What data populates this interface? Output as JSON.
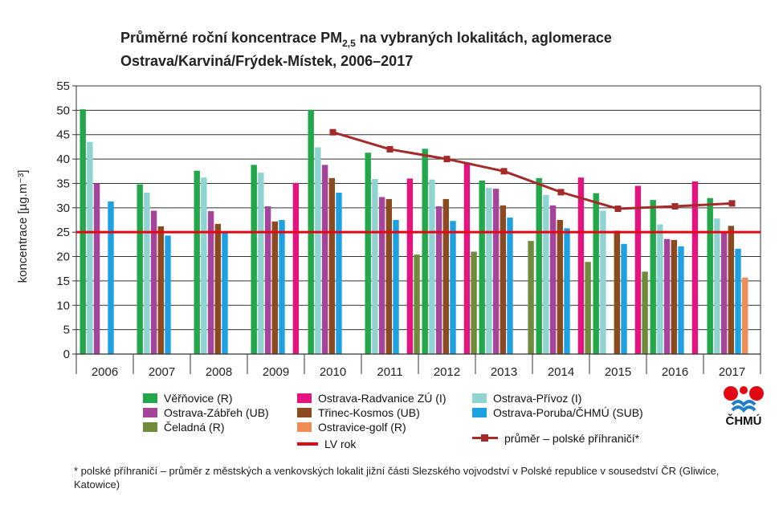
{
  "title": {
    "line1_prefix": "Průměrné roční koncentrace PM",
    "line1_sub": "2,5",
    "line1_suffix": " na vybraných lokalitách, aglomerace",
    "line2": "Ostrava/Karviná/Frýdek-Místek, 2006–2017"
  },
  "ylabel": "koncentrace [µg.m⁻³]",
  "footnote": "* polské příhraničí – průměr z městských a venkovských lokalit jižní části Slezského vojvodství v Polské republice v sousedství ČR (Gliwice, Katowice)",
  "logo": {
    "text": "ČHMÚ",
    "colors": {
      "red": "#e30613",
      "blue": "#1f7fc8"
    }
  },
  "chart_data": {
    "type": "bar",
    "categories": [
      "2006",
      "2007",
      "2008",
      "2009",
      "2010",
      "2011",
      "2012",
      "2013",
      "2014",
      "2015",
      "2016",
      "2017"
    ],
    "ylim": [
      0,
      55
    ],
    "yticks": [
      0,
      5,
      10,
      15,
      20,
      25,
      30,
      35,
      40,
      45,
      50,
      55
    ],
    "grid": true,
    "series": [
      {
        "name": "Věřňovice (R)",
        "color": "#22a84a",
        "values": [
          50.2,
          34.8,
          37.6,
          38.8,
          50.1,
          41.3,
          42.1,
          35.6,
          36.1,
          33.0,
          31.6,
          32.0
        ]
      },
      {
        "name": "Ostrava-Přívoz (I)",
        "color": "#8fd4d0",
        "values": [
          43.5,
          33.1,
          36.2,
          37.2,
          42.4,
          35.9,
          35.8,
          34.1,
          32.6,
          29.4,
          26.6,
          27.8
        ]
      },
      {
        "name": "Ostrava-Zábřeh (UB)",
        "color": "#a4449a",
        "values": [
          35.0,
          29.4,
          29.3,
          30.3,
          38.8,
          32.2,
          30.3,
          33.9,
          30.5,
          null,
          23.6,
          24.9
        ]
      },
      {
        "name": "Třinec-Kosmos (UB)",
        "color": "#8b4a1f",
        "values": [
          null,
          26.2,
          26.7,
          27.2,
          36.1,
          31.8,
          31.8,
          30.5,
          27.5,
          25.3,
          23.4,
          26.3
        ]
      },
      {
        "name": "Ostrava-Poruba/ČHMÚ (SUB)",
        "color": "#1ea1e0",
        "values": [
          31.3,
          24.3,
          25.1,
          27.5,
          33.1,
          27.5,
          27.3,
          28.0,
          25.8,
          22.6,
          22.1,
          21.6
        ]
      },
      {
        "name": "Ostravice-golf (R)",
        "color": "#f08c56",
        "values": [
          null,
          null,
          null,
          null,
          null,
          null,
          null,
          null,
          null,
          null,
          null,
          15.7
        ]
      },
      {
        "name": "Ostrava-Radvanice ZÚ (I)",
        "color": "#e3147e",
        "values": [
          null,
          null,
          null,
          35.1,
          null,
          36.0,
          39.3,
          null,
          36.2,
          34.5,
          35.4,
          null
        ]
      },
      {
        "name": "Čeladná (R)",
        "color": "#6f8c3a",
        "values": [
          null,
          null,
          null,
          null,
          null,
          20.4,
          21.0,
          23.2,
          18.9,
          16.9,
          null,
          null
        ]
      }
    ],
    "lines": [
      {
        "name": "LV rok",
        "color": "#e30613",
        "value": 25
      },
      {
        "name": "průměr – polské příhraničí*",
        "color": "#a52a2a",
        "values": [
          null,
          null,
          null,
          null,
          45.5,
          42.0,
          40.0,
          37.5,
          33.2,
          29.8,
          30.3,
          30.9
        ]
      }
    ]
  },
  "legend": [
    {
      "label": "Věřňovice (R)",
      "color": "#22a84a",
      "kind": "box"
    },
    {
      "label": "Ostrava-Radvanice ZÚ (I)",
      "color": "#e3147e",
      "kind": "box"
    },
    {
      "label": "Ostrava-Přívoz (I)",
      "color": "#8fd4d0",
      "kind": "box"
    },
    {
      "label": "Ostrava-Zábřeh (UB)",
      "color": "#a4449a",
      "kind": "box"
    },
    {
      "label": "Třinec-Kosmos (UB)",
      "color": "#8b4a1f",
      "kind": "box"
    },
    {
      "label": "Ostrava-Poruba/ČHMÚ (SUB)",
      "color": "#1ea1e0",
      "kind": "box"
    },
    {
      "label": "Čeladná (R)",
      "color": "#6f8c3a",
      "kind": "box"
    },
    {
      "label": "Ostravice-golf (R)",
      "color": "#f08c56",
      "kind": "box"
    },
    {
      "label": "LV rok",
      "color": "#e30613",
      "kind": "line"
    },
    {
      "label": "průměr – polské příhraničí*",
      "color": "#a52a2a",
      "kind": "marker-line"
    }
  ]
}
